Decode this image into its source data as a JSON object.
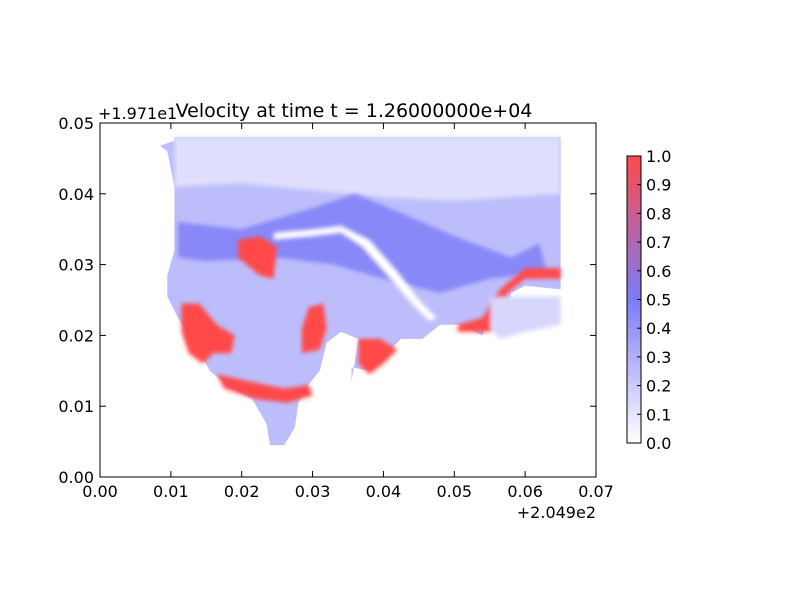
{
  "chart_data": {
    "type": "heatmap",
    "title": "Velocity at time t = 1.26000000e+04",
    "xlabel": "",
    "ylabel": "",
    "x_offset_text": "+2.049e2",
    "y_offset_text": "+1.971e1",
    "xlim": [
      0.0,
      0.07
    ],
    "ylim": [
      0.0,
      0.05
    ],
    "x_ticks": [
      "0.00",
      "0.01",
      "0.02",
      "0.03",
      "0.04",
      "0.05",
      "0.06",
      "0.07"
    ],
    "y_ticks": [
      "0.00",
      "0.01",
      "0.02",
      "0.03",
      "0.04",
      "0.05"
    ],
    "grid": false,
    "colorbar": {
      "range": [
        0.0,
        1.0
      ],
      "ticks": [
        "0.0",
        "0.1",
        "0.2",
        "0.3",
        "0.4",
        "0.5",
        "0.6",
        "0.7",
        "0.8",
        "0.9",
        "1.0"
      ],
      "colors": [
        "#ffffff",
        "#7b7bf7",
        "#ff4a4a"
      ]
    },
    "regions": [
      {
        "label": "domain-background",
        "value": 0.25,
        "points": [
          [
            0.0085,
            0.0468
          ],
          [
            0.0105,
            0.0475
          ],
          [
            0.0105,
            0.048
          ],
          [
            0.065,
            0.048
          ],
          [
            0.065,
            0.0265
          ],
          [
            0.06,
            0.027
          ],
          [
            0.058,
            0.026
          ],
          [
            0.0575,
            0.022
          ],
          [
            0.0545,
            0.0215
          ],
          [
            0.054,
            0.02
          ],
          [
            0.0505,
            0.0215
          ],
          [
            0.048,
            0.0215
          ],
          [
            0.0455,
            0.0195
          ],
          [
            0.0425,
            0.0195
          ],
          [
            0.0395,
            0.0165
          ],
          [
            0.038,
            0.015
          ],
          [
            0.0355,
            0.0155
          ],
          [
            0.0355,
            0.0135
          ],
          [
            0.0365,
            0.0195
          ],
          [
            0.034,
            0.0205
          ],
          [
            0.032,
            0.019
          ],
          [
            0.031,
            0.015
          ],
          [
            0.029,
            0.0125
          ],
          [
            0.028,
            0.0105
          ],
          [
            0.0275,
            0.007
          ],
          [
            0.026,
            0.0045
          ],
          [
            0.024,
            0.0045
          ],
          [
            0.0235,
            0.0075
          ],
          [
            0.0215,
            0.011
          ],
          [
            0.0185,
            0.0125
          ],
          [
            0.0155,
            0.015
          ],
          [
            0.0135,
            0.0185
          ],
          [
            0.011,
            0.0225
          ],
          [
            0.0095,
            0.0255
          ],
          [
            0.0095,
            0.0285
          ],
          [
            0.0105,
            0.032
          ],
          [
            0.0105,
            0.041
          ],
          [
            0.0095,
            0.046
          ]
        ]
      },
      {
        "label": "upper-band",
        "value": 0.12,
        "points": [
          [
            0.0105,
            0.048
          ],
          [
            0.065,
            0.048
          ],
          [
            0.065,
            0.04
          ],
          [
            0.05,
            0.039
          ],
          [
            0.04,
            0.0395
          ],
          [
            0.03,
            0.0405
          ],
          [
            0.02,
            0.0415
          ],
          [
            0.0105,
            0.041
          ]
        ]
      },
      {
        "label": "mid-band",
        "value": 0.45,
        "points": [
          [
            0.011,
            0.036
          ],
          [
            0.02,
            0.035
          ],
          [
            0.03,
            0.038
          ],
          [
            0.036,
            0.04
          ],
          [
            0.042,
            0.0375
          ],
          [
            0.05,
            0.034
          ],
          [
            0.058,
            0.031
          ],
          [
            0.062,
            0.033
          ],
          [
            0.063,
            0.029
          ],
          [
            0.055,
            0.028
          ],
          [
            0.048,
            0.026
          ],
          [
            0.04,
            0.028
          ],
          [
            0.033,
            0.03
          ],
          [
            0.025,
            0.031
          ],
          [
            0.015,
            0.0305
          ],
          [
            0.011,
            0.031
          ]
        ]
      },
      {
        "label": "west-coast-red",
        "value": 1.0,
        "points": [
          [
            0.0115,
            0.0245
          ],
          [
            0.014,
            0.0245
          ],
          [
            0.0165,
            0.0215
          ],
          [
            0.019,
            0.02
          ],
          [
            0.0185,
            0.0175
          ],
          [
            0.016,
            0.0175
          ],
          [
            0.0145,
            0.016
          ],
          [
            0.0125,
            0.0175
          ],
          [
            0.0115,
            0.0205
          ]
        ]
      },
      {
        "label": "south-coast-red",
        "value": 1.0,
        "points": [
          [
            0.0165,
            0.0145
          ],
          [
            0.021,
            0.0135
          ],
          [
            0.026,
            0.0125
          ],
          [
            0.0295,
            0.013
          ],
          [
            0.03,
            0.0115
          ],
          [
            0.0265,
            0.0105
          ],
          [
            0.022,
            0.011
          ],
          [
            0.0175,
            0.0125
          ]
        ]
      },
      {
        "label": "inner-bay-red",
        "value": 1.0,
        "points": [
          [
            0.0285,
            0.0175
          ],
          [
            0.031,
            0.018
          ],
          [
            0.032,
            0.021
          ],
          [
            0.0315,
            0.0245
          ],
          [
            0.0295,
            0.024
          ],
          [
            0.0285,
            0.021
          ]
        ]
      },
      {
        "label": "south-point-red",
        "value": 1.0,
        "points": [
          [
            0.0365,
            0.0195
          ],
          [
            0.0395,
            0.0195
          ],
          [
            0.042,
            0.018
          ],
          [
            0.04,
            0.016
          ],
          [
            0.038,
            0.0145
          ],
          [
            0.0365,
            0.016
          ]
        ]
      },
      {
        "label": "northwest-red",
        "value": 1.0,
        "points": [
          [
            0.0195,
            0.0335
          ],
          [
            0.0225,
            0.034
          ],
          [
            0.025,
            0.0325
          ],
          [
            0.0245,
            0.028
          ],
          [
            0.0225,
            0.0285
          ],
          [
            0.0195,
            0.031
          ]
        ]
      },
      {
        "label": "harbor-red",
        "value": 1.0,
        "points": [
          [
            0.0505,
            0.0215
          ],
          [
            0.054,
            0.0225
          ],
          [
            0.0565,
            0.0265
          ],
          [
            0.06,
            0.0295
          ],
          [
            0.065,
            0.0295
          ],
          [
            0.065,
            0.028
          ],
          [
            0.06,
            0.028
          ],
          [
            0.0575,
            0.026
          ],
          [
            0.0565,
            0.022
          ],
          [
            0.055,
            0.0205
          ],
          [
            0.0505,
            0.0205
          ]
        ]
      },
      {
        "label": "breakwater-channel",
        "value": 0.0,
        "points": [
          [
            0.0245,
            0.0335
          ],
          [
            0.03,
            0.034
          ],
          [
            0.034,
            0.0345
          ],
          [
            0.037,
            0.0325
          ],
          [
            0.041,
            0.028
          ],
          [
            0.044,
            0.0245
          ],
          [
            0.0465,
            0.022
          ],
          [
            0.0475,
            0.0225
          ],
          [
            0.045,
            0.025
          ],
          [
            0.042,
            0.029
          ],
          [
            0.038,
            0.0335
          ],
          [
            0.034,
            0.0355
          ],
          [
            0.03,
            0.035
          ],
          [
            0.0245,
            0.0345
          ]
        ]
      },
      {
        "label": "offshore-patch",
        "value": 0.15,
        "points": [
          [
            0.055,
            0.0255
          ],
          [
            0.065,
            0.0255
          ],
          [
            0.065,
            0.0215
          ],
          [
            0.06,
            0.0205
          ],
          [
            0.0565,
            0.0195
          ],
          [
            0.055,
            0.021
          ]
        ]
      }
    ]
  }
}
